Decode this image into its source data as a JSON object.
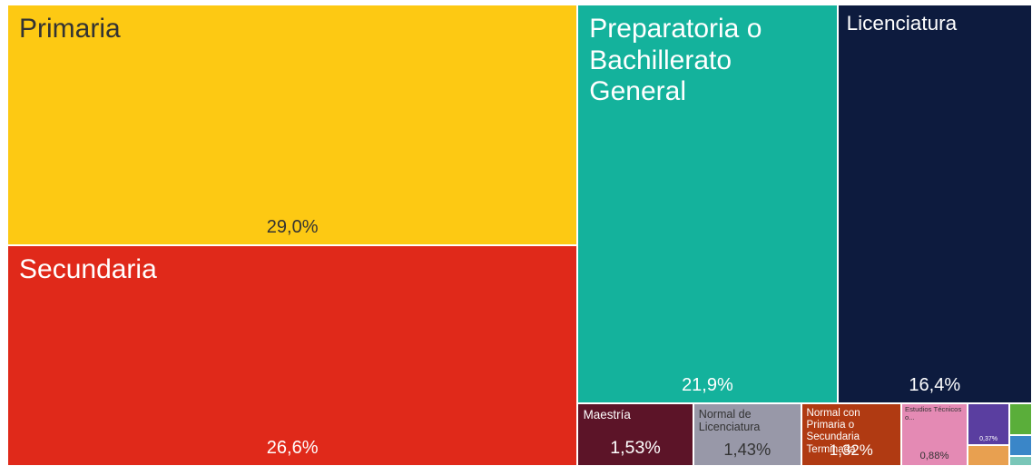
{
  "chart_data": {
    "type": "treemap",
    "categories": [
      "Primaria",
      "Secundaria",
      "Preparatoria o Bachillerato General",
      "Licenciatura",
      "Maestría",
      "Normal de Licenciatura",
      "Normal con Primaria o Secundaria Terminada",
      "Estudios Técnicos o...",
      null,
      null,
      null,
      null,
      null
    ],
    "values": [
      29.0,
      26.6,
      21.9,
      16.4,
      1.53,
      1.43,
      1.32,
      0.88,
      0.37,
      0.18,
      0.15,
      0.1,
      0.05
    ],
    "value_labels": [
      "29,0%",
      "26,6%",
      "21,9%",
      "16,4%",
      "1,53%",
      "1,43%",
      "1,32%",
      "0,88%",
      "0,37%",
      null,
      null,
      null,
      null
    ],
    "colors": [
      "#fdc913",
      "#e0291a",
      "#14b29c",
      "#0d1b3e",
      "#5c1428",
      "#9898a8",
      "#b03a12",
      "#e48ab4",
      "#5a3ea0",
      "#e8a050",
      "#5aae3a",
      "#3a86c8",
      "#7ac6b8"
    ]
  }
}
